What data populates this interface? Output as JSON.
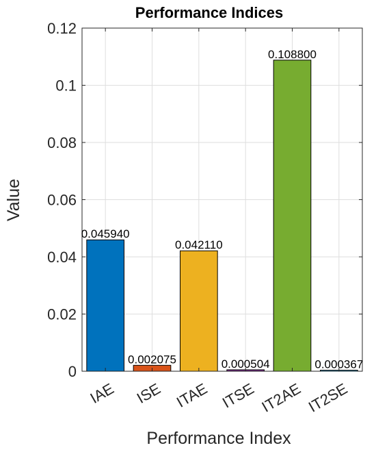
{
  "chart_data": {
    "type": "bar",
    "title": "Performance Indices",
    "xlabel": "Performance Index",
    "ylabel": "Value",
    "categories": [
      "IAE",
      "ISE",
      "ITAE",
      "ITSE",
      "IT2AE",
      "IT2SE"
    ],
    "values": [
      0.04594,
      0.002075,
      0.04211,
      0.000504,
      0.1088,
      0.000367
    ],
    "data_labels": [
      "0.045940",
      "0.002075",
      "0.042110",
      "0.000504",
      "0.108800",
      "0.000367"
    ],
    "bar_colors": [
      "#0072BD",
      "#D95319",
      "#EDB120",
      "#7E2F8E",
      "#77AC30",
      "#4DBEEE"
    ],
    "ylim": [
      0,
      0.12
    ],
    "yticks": [
      0,
      0.02,
      0.04,
      0.06,
      0.08,
      0.1,
      0.12
    ],
    "ytick_labels": [
      "0",
      "0.02",
      "0.04",
      "0.06",
      "0.08",
      "0.1",
      "0.12"
    ],
    "grid": true,
    "legend": "none"
  }
}
